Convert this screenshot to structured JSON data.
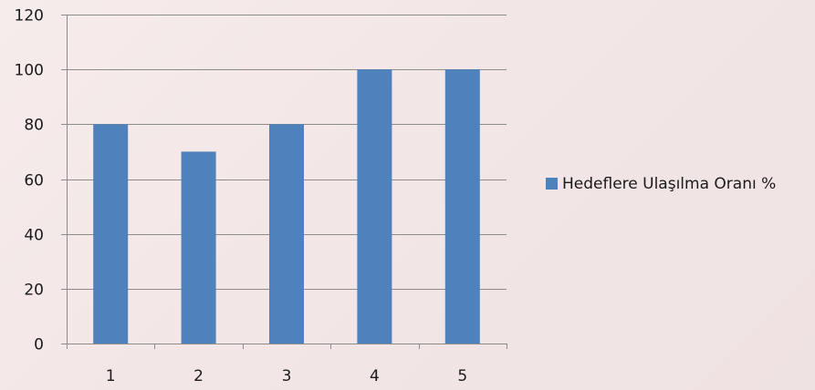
{
  "chart_data": {
    "type": "bar",
    "title": "",
    "xlabel": "",
    "ylabel": "",
    "categories": [
      "1",
      "2",
      "3",
      "4",
      "5"
    ],
    "series": [
      {
        "name": "Hedeflere Ulaşılma Oranı %",
        "values": [
          80,
          70,
          80,
          100,
          100
        ],
        "color": "#4f81bd"
      }
    ],
    "ylim": [
      0,
      120
    ],
    "yticks": [
      0,
      20,
      40,
      60,
      80,
      100,
      120
    ],
    "grid": true,
    "legend_position": "right"
  },
  "colors": {
    "grid": "#8c8c8c",
    "axis": "#8c8c8c",
    "bar": "#4f81bd"
  }
}
